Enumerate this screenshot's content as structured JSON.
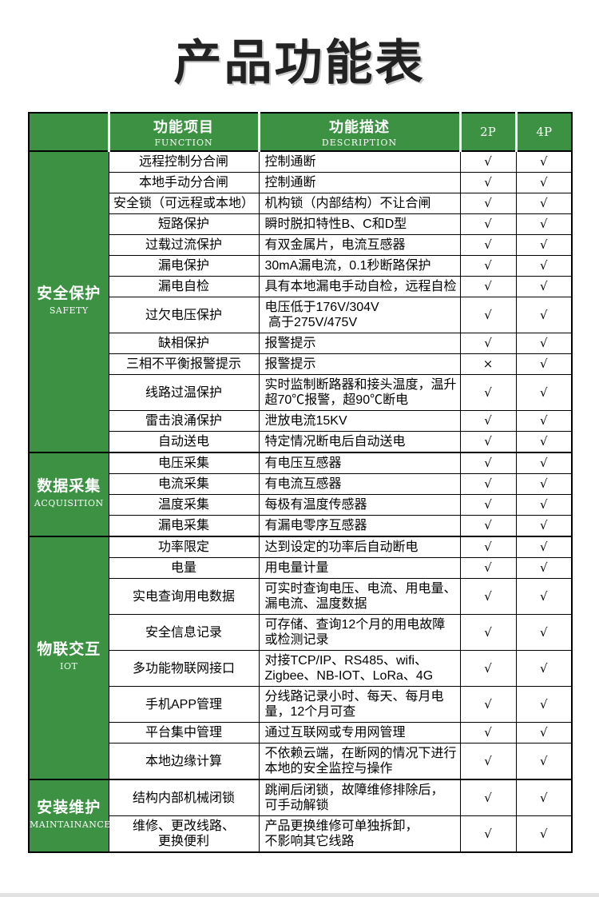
{
  "title": "产品功能表",
  "colors": {
    "green": "#3c9143",
    "bottom_bar": "#e2e2e2"
  },
  "table": {
    "header": {
      "function_cn": "功能项目",
      "function_en": "FUNCTION",
      "description_cn": "功能描述",
      "description_en": "DESCRIPTION",
      "col_2p": "2P",
      "col_4p": "4P"
    },
    "sections": [
      {
        "name_cn": "安全保护",
        "name_en": "SAFETY",
        "rows": [
          {
            "function": "远程控制分合闸",
            "description": "控制通断",
            "p2": "√",
            "p4": "√"
          },
          {
            "function": "本地手动分合闸",
            "description": "控制通断",
            "p2": "√",
            "p4": "√"
          },
          {
            "function": "安全锁（可远程或本地）",
            "description": "机构锁（内部结构）不让合闸",
            "p2": "√",
            "p4": "√"
          },
          {
            "function": "短路保护",
            "description": "瞬时脱扣特性B、C和D型",
            "p2": "√",
            "p4": "√"
          },
          {
            "function": "过载过流保护",
            "description": "有双金属片，电流互感器",
            "p2": "√",
            "p4": "√"
          },
          {
            "function": "漏电保护",
            "description": "30mA漏电流，0.1秒断路保护",
            "p2": "√",
            "p4": "√"
          },
          {
            "function": "漏电自检",
            "description": "具有本地漏电手动自检，远程自检",
            "p2": "√",
            "p4": "√"
          },
          {
            "function": "过欠电压保护",
            "description": "电压低于176V/304V\n 高于275V/475V",
            "p2": "√",
            "p4": "√"
          },
          {
            "function": "缺相保护",
            "description": "报警提示",
            "p2": "√",
            "p4": "√"
          },
          {
            "function": "三相不平衡报警提示",
            "description": "报警提示",
            "p2": "×",
            "p4": "√"
          },
          {
            "function": "线路过温保护",
            "description": "实时监制断路器和接头温度，温升\n超70℃报警，超90℃断电",
            "p2": "√",
            "p4": "√"
          },
          {
            "function": "雷击浪涌保护",
            "description": "泄放电流15KV",
            "p2": "√",
            "p4": "√"
          },
          {
            "function": "自动送电",
            "description": "特定情况断电后自动送电",
            "p2": "√",
            "p4": "√"
          }
        ]
      },
      {
        "name_cn": "数据采集",
        "name_en": "ACQUISITION",
        "rows": [
          {
            "function": "电压采集",
            "description": "有电压互感器",
            "p2": "√",
            "p4": "√"
          },
          {
            "function": "电流采集",
            "description": "有电流互感器",
            "p2": "√",
            "p4": "√"
          },
          {
            "function": "温度采集",
            "description": "每极有温度传感器",
            "p2": "√",
            "p4": "√"
          },
          {
            "function": "漏电采集",
            "description": "有漏电零序互感器",
            "p2": "√",
            "p4": "√"
          }
        ]
      },
      {
        "name_cn": "物联交互",
        "name_en": "IOT",
        "rows": [
          {
            "function": "功率限定",
            "description": "达到设定的功率后自动断电",
            "p2": "√",
            "p4": "√"
          },
          {
            "function": "电量",
            "description": "用电量计量",
            "p2": "√",
            "p4": "√"
          },
          {
            "function": "实电查询用电数据",
            "description": "可实时查询电压、电流、用电量、\n漏电流、温度数据",
            "p2": "√",
            "p4": "√"
          },
          {
            "function": "安全信息记录",
            "description": "可存储、查询12个月的用电故障\n或检测记录",
            "p2": "√",
            "p4": "√"
          },
          {
            "function": "多功能物联网接口",
            "description": "对接TCP/IP、RS485、wifi、\nZigbee、NB-IOT、LoRa、4G",
            "p2": "√",
            "p4": "√"
          },
          {
            "function": "手机APP管理",
            "description": "分线路记录小时、每天、每月电\n量，12个月可查",
            "p2": "√",
            "p4": "√"
          },
          {
            "function": "平台集中管理",
            "description": "通过互联网或专用网管理",
            "p2": "√",
            "p4": "√"
          },
          {
            "function": "本地边缘计算",
            "description": "不依赖云端，在断网的情况下进行\n本地的安全监控与操作",
            "p2": "√",
            "p4": "√"
          }
        ]
      },
      {
        "name_cn": "安装维护",
        "name_en": "MAINTAINANCE",
        "rows": [
          {
            "function": "结构内部机械闭锁",
            "description": "跳闸后闭锁，故障维修排除后，\n可手动解锁",
            "p2": "√",
            "p4": "√"
          },
          {
            "function": "维修、更改线路、\n更换便利",
            "description": "产品更换维修可单独拆卸，\n不影响其它线路",
            "p2": "√",
            "p4": "√"
          }
        ]
      }
    ]
  }
}
